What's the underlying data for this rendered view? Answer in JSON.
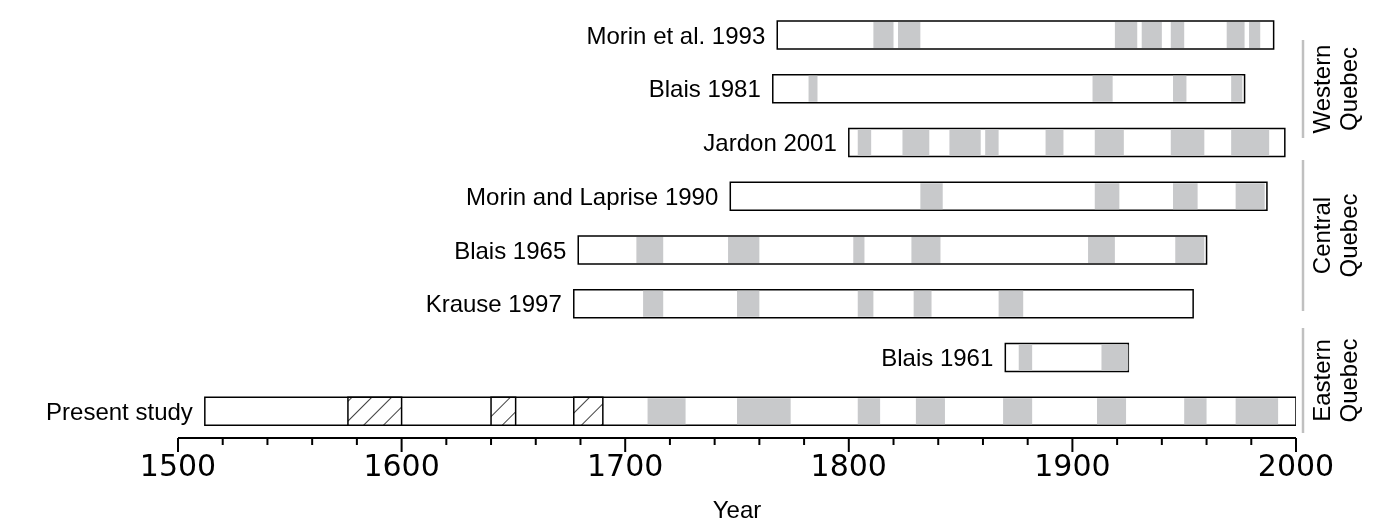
{
  "chart_data": {
    "type": "bar",
    "orientation": "horizontal",
    "xlabel": "Year",
    "categories": [
      "Morin et al. 1993",
      "Blais 1981",
      "Jardon 2001",
      "Morin and Laprise 1990",
      "Blais 1965",
      "Krause 1997",
      "Blais 1961",
      "Present study"
    ],
    "series": [
      {
        "color": "#ffffff",
        "base": [
          1768,
          1766,
          1800,
          1747,
          1679,
          1677,
          1870,
          1512
        ],
        "values": [
          222,
          211,
          195,
          240,
          281,
          277,
          55,
          488
        ]
      },
      {
        "color": "#000000",
        "base": [
          null,
          null,
          null,
          null,
          null,
          null,
          null,
          1576
        ],
        "values": [
          null,
          null,
          null,
          null,
          null,
          null,
          null,
          24
        ]
      },
      {
        "color": "#000000",
        "base": [
          null,
          null,
          null,
          null,
          null,
          null,
          null,
          1640
        ],
        "values": [
          null,
          null,
          null,
          null,
          null,
          null,
          null,
          11
        ]
      },
      {
        "color": "#000000",
        "base": [
          null,
          null,
          null,
          null,
          null,
          null,
          null,
          1677
        ],
        "values": [
          null,
          null,
          null,
          null,
          null,
          null,
          null,
          13
        ]
      },
      {
        "color": "#c8c9cb",
        "base": [
          1811,
          1782,
          1804,
          1832,
          1705,
          1708,
          1876,
          1710
        ],
        "values": [
          9,
          4,
          6,
          10,
          12,
          9,
          6,
          17
        ]
      },
      {
        "color": "#c8c9cb",
        "base": [
          1822,
          1909,
          1824,
          1910,
          1746,
          1750,
          1913,
          1750
        ],
        "values": [
          10,
          9,
          12,
          11,
          14,
          10,
          12,
          24
        ]
      },
      {
        "color": "#c8c9cb",
        "base": [
          1919,
          1945,
          1845,
          1945,
          1802,
          1804,
          null,
          1804
        ],
        "values": [
          10,
          6,
          14,
          11,
          5,
          7,
          null,
          10
        ]
      },
      {
        "color": "#c8c9cb",
        "base": [
          1931,
          1971,
          1861,
          1973,
          1828,
          1829,
          null,
          1830
        ],
        "values": [
          9,
          5,
          6,
          13,
          13,
          8,
          null,
          13
        ]
      },
      {
        "color": "#c8c9cb",
        "base": [
          1944,
          null,
          1888,
          null,
          1907,
          1867,
          null,
          1869
        ],
        "values": [
          6,
          null,
          8,
          null,
          12,
          11,
          null,
          13
        ]
      },
      {
        "color": "#c8c9cb",
        "base": [
          1969,
          null,
          1910,
          null,
          1946,
          null,
          null,
          1911
        ],
        "values": [
          8,
          null,
          13,
          null,
          13,
          null,
          null,
          13
        ]
      },
      {
        "color": "#c8c9cb",
        "base": [
          1979,
          null,
          1944,
          null,
          null,
          null,
          null,
          1950
        ],
        "values": [
          5,
          null,
          15,
          null,
          null,
          null,
          null,
          10
        ]
      },
      {
        "color": "#c8c9cb",
        "base": [
          null,
          null,
          1971,
          null,
          null,
          null,
          null,
          1973
        ],
        "values": [
          null,
          null,
          17,
          null,
          null,
          null,
          null,
          19
        ]
      }
    ],
    "xlim": [
      1500,
      2000
    ],
    "xticks": [
      1500,
      {
        "value": 1520,
        "label": null
      },
      {
        "value": 1540,
        "label": null
      },
      {
        "value": 1560,
        "label": null
      },
      {
        "value": 1580,
        "label": null
      },
      1600,
      {
        "value": 1620,
        "label": null
      },
      {
        "value": 1640,
        "label": null
      },
      {
        "value": 1660,
        "label": null
      },
      {
        "value": 1680,
        "label": null
      },
      1700,
      {
        "value": 1720,
        "label": null
      },
      {
        "value": 1740,
        "label": null
      },
      {
        "value": 1760,
        "label": null
      },
      {
        "value": 1780,
        "label": null
      },
      1800,
      {
        "value": 1820,
        "label": null
      },
      {
        "value": 1840,
        "label": null
      },
      {
        "value": 1860,
        "label": null
      },
      {
        "value": 1880,
        "label": null
      },
      1900,
      {
        "value": 1920,
        "label": null
      },
      {
        "value": 1940,
        "label": null
      },
      {
        "value": 1960,
        "label": null
      },
      {
        "value": 1980,
        "label": null
      },
      2000
    ],
    "annotations": [
      "Western Quebec",
      "Central Quebec",
      "Eastern Quebec"
    ],
    "grid": false,
    "legend": false
  }
}
